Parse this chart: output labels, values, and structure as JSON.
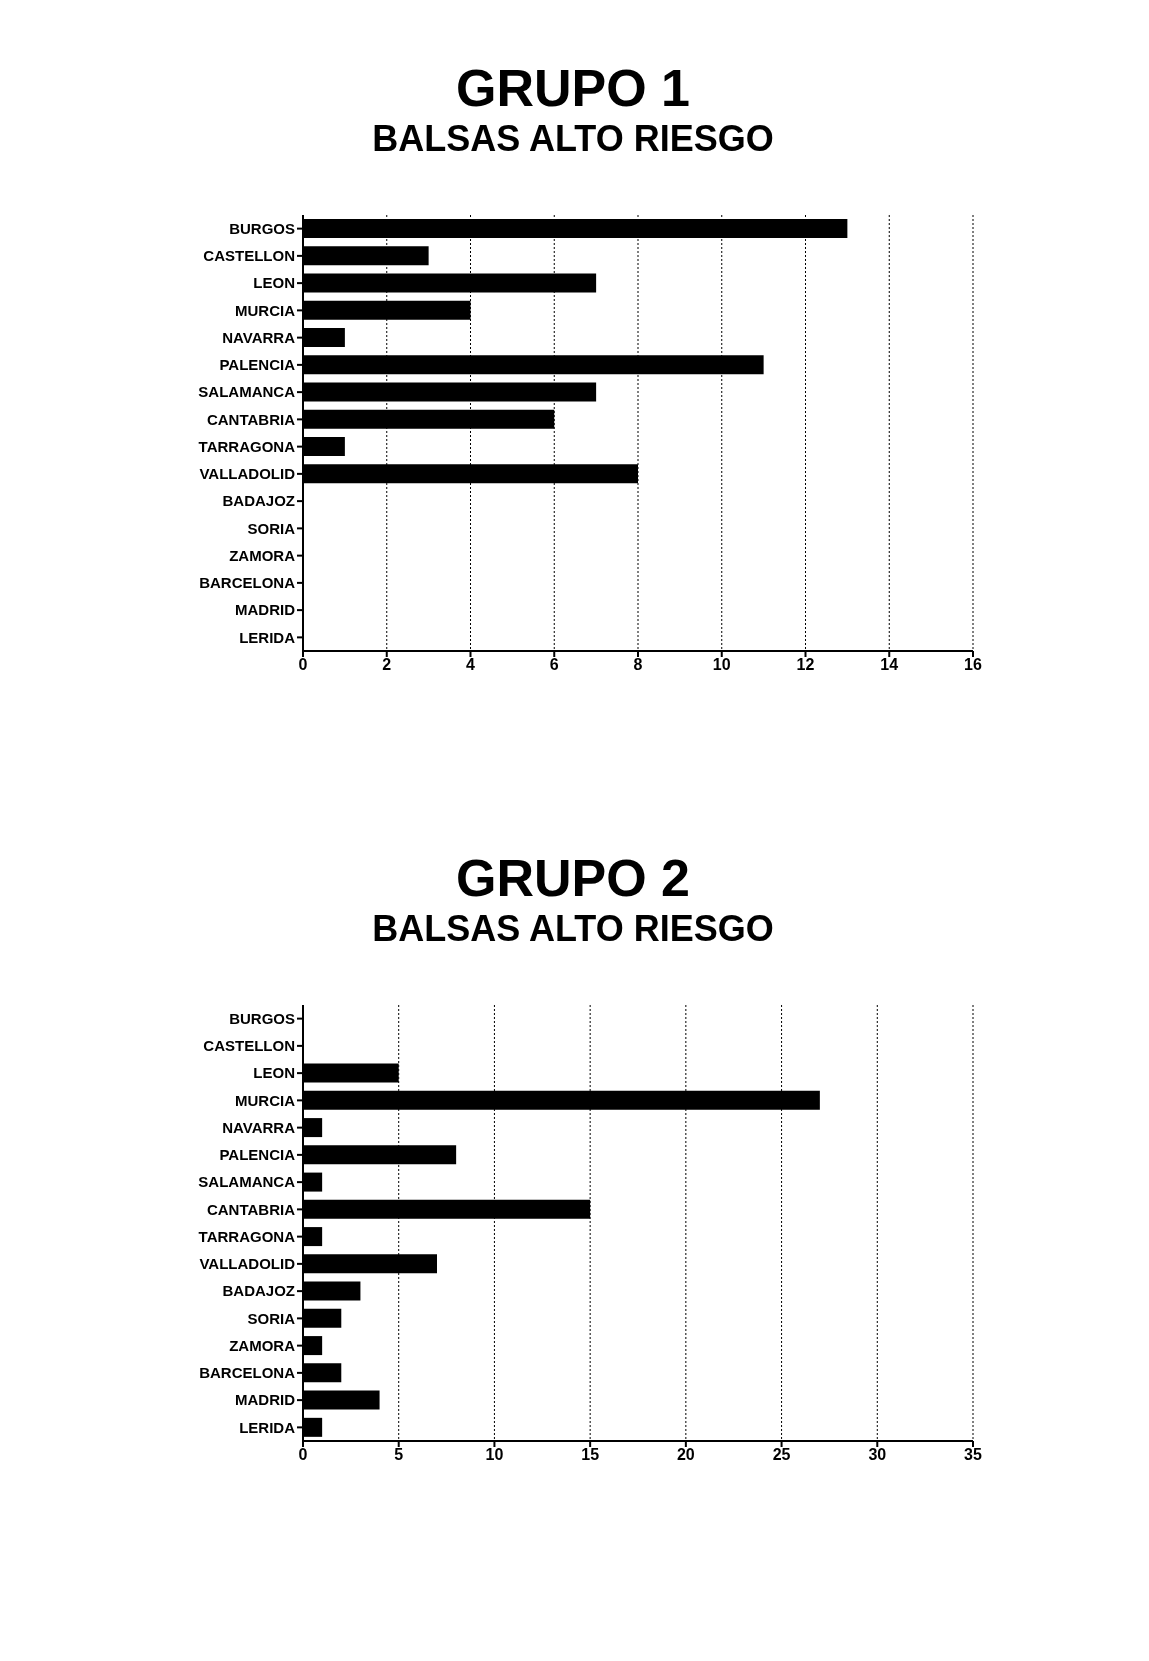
{
  "chart_data": [
    {
      "type": "bar",
      "title": "GRUPO 1",
      "subtitle": "BALSAS ALTO RIESGO",
      "orientation": "horizontal",
      "categories": [
        "BURGOS",
        "CASTELLON",
        "LEON",
        "MURCIA",
        "NAVARRA",
        "PALENCIA",
        "SALAMANCA",
        "CANTABRIA",
        "TARRAGONA",
        "VALLADOLID",
        "BADAJOZ",
        "SORIA",
        "ZAMORA",
        "BARCELONA",
        "MADRID",
        "LERIDA"
      ],
      "values": [
        13,
        3,
        7,
        4,
        1,
        11,
        7,
        6,
        1,
        8,
        0,
        0,
        0,
        0,
        0,
        0
      ],
      "color": "#000000",
      "xlim": [
        0,
        16
      ],
      "xticks": [
        0,
        2,
        4,
        6,
        8,
        10,
        12,
        14,
        16
      ],
      "grid": "x"
    },
    {
      "type": "bar",
      "title": "GRUPO 2",
      "subtitle": "BALSAS ALTO RIESGO",
      "orientation": "horizontal",
      "categories": [
        "BURGOS",
        "CASTELLON",
        "LEON",
        "MURCIA",
        "NAVARRA",
        "PALENCIA",
        "SALAMANCA",
        "CANTABRIA",
        "TARRAGONA",
        "VALLADOLID",
        "BADAJOZ",
        "SORIA",
        "ZAMORA",
        "BARCELONA",
        "MADRID",
        "LERIDA"
      ],
      "values": [
        0,
        0,
        5,
        27,
        1,
        8,
        1,
        15,
        1,
        7,
        3,
        2,
        1,
        2,
        4,
        1
      ],
      "color": "#000000",
      "xlim": [
        0,
        35
      ],
      "xticks": [
        0,
        5,
        10,
        15,
        20,
        25,
        30,
        35
      ],
      "grid": "x"
    }
  ]
}
